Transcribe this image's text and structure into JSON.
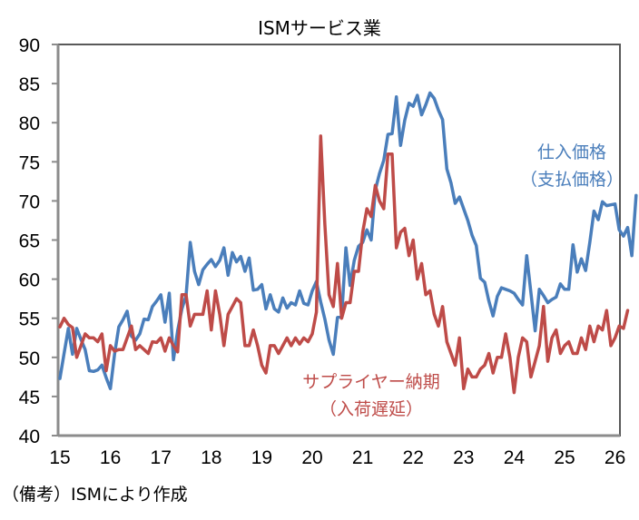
{
  "chart_data": {
    "type": "line",
    "title": "ISMサービス業",
    "xlabel": "",
    "ylabel": "",
    "ylim": [
      40,
      90
    ],
    "yticks": [
      40,
      45,
      50,
      55,
      60,
      65,
      70,
      75,
      80,
      85,
      90
    ],
    "xticks": [
      "15",
      "16",
      "17",
      "18",
      "19",
      "20",
      "21",
      "22",
      "23",
      "24",
      "25",
      "26"
    ],
    "x_start": "2015-01",
    "x_frequency": "monthly",
    "grid": false,
    "series": [
      {
        "name": "仕入価格（支払価格）",
        "label_lines": [
          "仕入価格",
          "（支払価格）"
        ],
        "color": "#4a7ebb",
        "values": [
          47.3,
          50.5,
          53.7,
          50.4,
          53.7,
          52.3,
          51.0,
          48.3,
          48.2,
          48.4,
          49.0,
          47.4,
          46.0,
          50.4,
          53.9,
          54.8,
          55.9,
          52.7,
          52.2,
          53.0,
          54.9,
          54.8,
          56.5,
          57.2,
          58.0,
          54.5,
          58.2,
          49.7,
          53.4,
          56.2,
          57.9,
          64.7,
          61.0,
          59.3,
          61.2,
          61.9,
          62.5,
          61.6,
          62.4,
          64.0,
          60.5,
          63.4,
          62.2,
          62.9,
          61.0,
          62.7,
          58.6,
          58.7,
          59.3,
          56.2,
          58.0,
          56.2,
          55.8,
          57.6,
          56.3,
          57.0,
          56.7,
          58.5,
          56.9,
          56.7,
          58.5,
          59.7,
          57.1,
          54.9,
          52.2,
          50.4,
          55.1,
          55.2,
          64.0,
          59.2,
          62.4,
          64.2,
          64.7,
          66.3,
          65.0,
          71.4,
          73.5,
          75.2,
          78.5,
          78.6,
          83.3,
          77.1,
          80.3,
          82.5,
          82.1,
          83.5,
          81.0,
          82.3,
          83.8,
          83.1,
          81.6,
          80.4,
          74.1,
          72.3,
          69.7,
          70.5,
          69.0,
          67.5,
          65.6,
          64.3,
          60.1,
          59.6,
          57.2,
          55.3,
          57.8,
          58.9,
          58.7,
          58.5,
          58.2,
          57.4,
          56.7,
          63.0,
          58.3,
          53.4,
          58.7,
          57.9,
          57.0,
          57.4,
          57.7,
          59.4,
          58.7,
          58.7,
          64.4,
          60.9,
          62.6,
          61.1,
          64.7,
          68.7,
          67.6,
          69.9,
          69.4,
          69.5,
          69.6,
          66.3,
          65.5,
          66.6,
          63.0,
          70.7
        ]
      },
      {
        "name": "サプライヤー納期（入荷遅延）",
        "label_lines": [
          "サプライヤー納期",
          "（入荷遅延）"
        ],
        "color": "#be4b48",
        "values": [
          53.9,
          55.0,
          54.2,
          53.8,
          50.0,
          51.5,
          53.0,
          52.5,
          52.5,
          52.0,
          53.0,
          48.3,
          51.5,
          50.8,
          51.0,
          51.0,
          52.5,
          54.0,
          51.0,
          51.5,
          51.0,
          50.5,
          52.0,
          51.9,
          52.5,
          50.8,
          52.5,
          51.5,
          50.7,
          58.0,
          58.0,
          54.0,
          55.5,
          55.5,
          55.5,
          58.5,
          53.5,
          58.5,
          55.5,
          51.5,
          55.5,
          56.5,
          57.5,
          57.0,
          51.5,
          51.5,
          53.5,
          51.5,
          49.0,
          48.0,
          51.5,
          51.5,
          50.5,
          51.5,
          52.5,
          51.5,
          52.5,
          51.7,
          52.5,
          52.0,
          53.0,
          55.8,
          78.3,
          67.0,
          58.0,
          56.5,
          62.0,
          55.0,
          57.0,
          57.0,
          61.0,
          61.0,
          66.0,
          69.0,
          68.0,
          72.0,
          70.0,
          69.0,
          76.0,
          76.0,
          64.0,
          66.0,
          66.5,
          63.0,
          65.0,
          60.0,
          62.0,
          58.0,
          58.5,
          55.5,
          54.0,
          56.5,
          52.0,
          50.5,
          49.0,
          52.5,
          46.0,
          48.5,
          47.5,
          47.5,
          48.5,
          49.0,
          50.5,
          48.0,
          50.0,
          50.0,
          53.0,
          50.0,
          45.5,
          50.0,
          52.5,
          52.0,
          47.5,
          49.5,
          51.5,
          56.5,
          49.5,
          52.5,
          53.5,
          50.5,
          51.5,
          52.0,
          50.5,
          50.5,
          52.5,
          51.0,
          54.0,
          52.0,
          54.0,
          53.5,
          56.0,
          51.5,
          52.5,
          54.0,
          53.7,
          56.0
        ]
      }
    ]
  },
  "note": "（備考）ISMにより作成"
}
